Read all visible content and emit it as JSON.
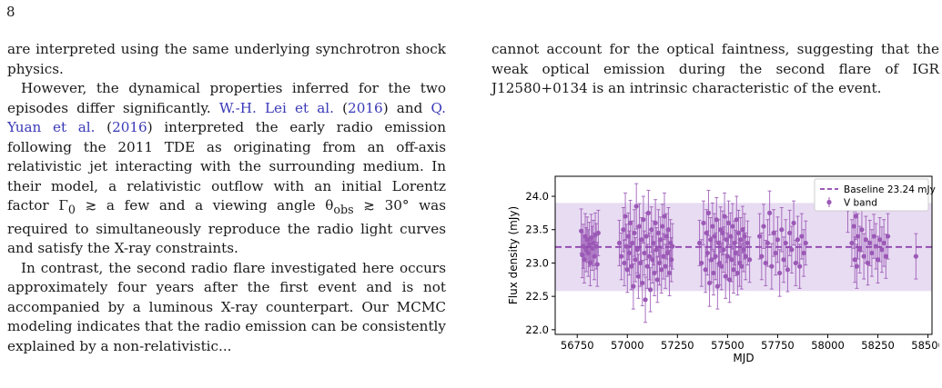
{
  "page": {
    "number": "8"
  },
  "left_column": {
    "p1": "are interpreted using the same underlying synchrotron shock physics.",
    "p2": {
      "t1": "However, the dynamical properties inferred for the two episodes differ significantly. ",
      "cite1_author": "W.-H. Lei et al.",
      "cite1_year": "2016",
      "t2": " and ",
      "cite2_author": "Q. Yuan et al.",
      "cite2_year": "2016",
      "t3": " interpreted the early radio emission following the 2011 TDE as originating from an off-axis relativistic jet interacting with the surrounding medium. In their model, a relativistic outflow with an initial Lorentz factor Γ",
      "t3_sub": "0",
      "t4": " ≳ a few and a viewing angle θ",
      "t4_sub": "obs",
      "t5": " ≳ 30° was required to simultaneously reproduce the radio light curves and satisfy the X-ray constraints."
    },
    "p3": "In contrast, the second radio flare investigated here occurs approximately four years after the first event and is not accompanied by a luminous X-ray counterpart. Our MCMC modeling indicates that the radio emission can be consistently explained by a non-relativistic..."
  },
  "right_column": {
    "p1": "cannot account for the optical faintness, suggesting that the weak optical emission during the second flare of IGR J12580+0134 is an intrinsic characteristic of the event."
  },
  "chart_data": {
    "type": "scatter",
    "xlabel": "MJD",
    "ylabel": "Flux density (mJy)",
    "xlim": [
      56640,
      58520
    ],
    "ylim": [
      21.93,
      24.3
    ],
    "xticks": [
      56750,
      57000,
      57250,
      57500,
      57750,
      58000,
      58250,
      58500
    ],
    "yticks": [
      22.0,
      22.5,
      23.0,
      23.5,
      24.0
    ],
    "grid": false,
    "legend": {
      "placement": "top-right",
      "baseline_label": "Baseline 23.24 mJy",
      "band_label": "V band"
    },
    "baseline": 23.24,
    "band": [
      22.58,
      23.9
    ],
    "colors": {
      "points": "#9b59b6",
      "baseline": "#8e44ad",
      "band_fill": "#e8dcf2"
    },
    "series": [
      {
        "name": "V band",
        "points": [
          [
            56770,
            23.48,
            0.33
          ],
          [
            56775,
            23.12,
            0.34
          ],
          [
            56780,
            23.25,
            0.33
          ],
          [
            56785,
            23.05,
            0.35
          ],
          [
            56790,
            23.4,
            0.34
          ],
          [
            56795,
            23.2,
            0.33
          ],
          [
            56800,
            23.35,
            0.34
          ],
          [
            56805,
            23.15,
            0.35
          ],
          [
            56810,
            23.28,
            0.33
          ],
          [
            56815,
            23.0,
            0.34
          ],
          [
            56820,
            23.38,
            0.35
          ],
          [
            56825,
            23.22,
            0.33
          ],
          [
            56830,
            23.3,
            0.34
          ],
          [
            56835,
            23.1,
            0.35
          ],
          [
            56840,
            23.42,
            0.33
          ],
          [
            56845,
            23.25,
            0.34
          ],
          [
            56850,
            22.98,
            0.33
          ],
          [
            56855,
            23.45,
            0.34
          ],
          [
            56960,
            23.3,
            0.34
          ],
          [
            56970,
            23.1,
            0.35
          ],
          [
            56980,
            23.5,
            0.33
          ],
          [
            56985,
            23.0,
            0.34
          ],
          [
            56990,
            23.7,
            0.35
          ],
          [
            56995,
            23.25,
            0.33
          ],
          [
            57000,
            22.9,
            0.34
          ],
          [
            57005,
            23.4,
            0.35
          ],
          [
            57010,
            23.15,
            0.33
          ],
          [
            57015,
            23.6,
            0.34
          ],
          [
            57020,
            22.95,
            0.35
          ],
          [
            57025,
            23.3,
            0.33
          ],
          [
            57030,
            22.65,
            0.34
          ],
          [
            57035,
            23.45,
            0.35
          ],
          [
            57040,
            23.05,
            0.33
          ],
          [
            57045,
            23.85,
            0.34
          ],
          [
            57050,
            23.2,
            0.35
          ],
          [
            57055,
            22.8,
            0.33
          ],
          [
            57060,
            23.55,
            0.34
          ],
          [
            57065,
            23.0,
            0.35
          ],
          [
            57070,
            23.35,
            0.33
          ],
          [
            57075,
            22.7,
            0.34
          ],
          [
            57080,
            23.65,
            0.35
          ],
          [
            57085,
            23.15,
            0.33
          ],
          [
            57090,
            22.45,
            0.34
          ],
          [
            57095,
            23.4,
            0.35
          ],
          [
            57100,
            22.95,
            0.33
          ],
          [
            57105,
            23.75,
            0.34
          ],
          [
            57110,
            23.1,
            0.35
          ],
          [
            57115,
            22.6,
            0.33
          ],
          [
            57120,
            23.5,
            0.34
          ],
          [
            57125,
            23.05,
            0.35
          ],
          [
            57130,
            23.3,
            0.33
          ],
          [
            57135,
            22.85,
            0.34
          ],
          [
            57140,
            23.6,
            0.35
          ],
          [
            57145,
            23.2,
            0.33
          ],
          [
            57150,
            22.75,
            0.34
          ],
          [
            57155,
            23.45,
            0.35
          ],
          [
            57160,
            23.0,
            0.33
          ],
          [
            57165,
            23.35,
            0.34
          ],
          [
            57170,
            22.9,
            0.35
          ],
          [
            57175,
            23.55,
            0.33
          ],
          [
            57180,
            23.1,
            0.34
          ],
          [
            57185,
            23.7,
            0.35
          ],
          [
            57190,
            22.95,
            0.33
          ],
          [
            57195,
            23.4,
            0.34
          ],
          [
            57200,
            23.15,
            0.35
          ],
          [
            57205,
            23.5,
            0.33
          ],
          [
            57210,
            22.85,
            0.34
          ],
          [
            57215,
            23.3,
            0.35
          ],
          [
            57220,
            23.05,
            0.33
          ],
          [
            57225,
            23.25,
            0.34
          ],
          [
            57360,
            23.3,
            0.34
          ],
          [
            57370,
            23.0,
            0.35
          ],
          [
            57380,
            23.6,
            0.33
          ],
          [
            57390,
            22.9,
            0.34
          ],
          [
            57395,
            23.45,
            0.35
          ],
          [
            57400,
            23.15,
            0.33
          ],
          [
            57405,
            23.75,
            0.34
          ],
          [
            57410,
            22.7,
            0.35
          ],
          [
            57415,
            23.35,
            0.33
          ],
          [
            57420,
            23.05,
            0.34
          ],
          [
            57425,
            23.55,
            0.35
          ],
          [
            57430,
            22.85,
            0.33
          ],
          [
            57435,
            23.4,
            0.34
          ],
          [
            57440,
            23.1,
            0.35
          ],
          [
            57445,
            23.65,
            0.33
          ],
          [
            57450,
            22.65,
            0.34
          ],
          [
            57455,
            23.3,
            0.35
          ],
          [
            57460,
            23.0,
            0.33
          ],
          [
            57465,
            23.5,
            0.34
          ],
          [
            57470,
            22.95,
            0.35
          ],
          [
            57475,
            23.45,
            0.33
          ],
          [
            57480,
            23.2,
            0.34
          ],
          [
            57485,
            23.7,
            0.35
          ],
          [
            57490,
            22.8,
            0.33
          ],
          [
            57495,
            23.35,
            0.34
          ],
          [
            57500,
            23.1,
            0.35
          ],
          [
            57505,
            23.6,
            0.33
          ],
          [
            57510,
            22.75,
            0.34
          ],
          [
            57515,
            23.4,
            0.35
          ],
          [
            57520,
            23.05,
            0.33
          ],
          [
            57525,
            23.55,
            0.34
          ],
          [
            57530,
            22.9,
            0.35
          ],
          [
            57535,
            23.3,
            0.33
          ],
          [
            57540,
            23.15,
            0.34
          ],
          [
            57545,
            23.65,
            0.35
          ],
          [
            57550,
            22.85,
            0.33
          ],
          [
            57555,
            23.45,
            0.34
          ],
          [
            57560,
            23.0,
            0.35
          ],
          [
            57565,
            23.35,
            0.33
          ],
          [
            57570,
            22.95,
            0.34
          ],
          [
            57575,
            23.5,
            0.35
          ],
          [
            57580,
            23.2,
            0.33
          ],
          [
            57585,
            23.4,
            0.34
          ],
          [
            57590,
            23.1,
            0.35
          ],
          [
            57600,
            23.3,
            0.33
          ],
          [
            57610,
            23.05,
            0.34
          ],
          [
            57660,
            23.4,
            0.34
          ],
          [
            57670,
            23.1,
            0.35
          ],
          [
            57680,
            23.55,
            0.33
          ],
          [
            57690,
            23.0,
            0.34
          ],
          [
            57700,
            23.3,
            0.35
          ],
          [
            57710,
            23.75,
            0.33
          ],
          [
            57720,
            22.95,
            0.34
          ],
          [
            57730,
            23.45,
            0.35
          ],
          [
            57740,
            23.15,
            0.33
          ],
          [
            57750,
            23.35,
            0.34
          ],
          [
            57760,
            22.85,
            0.35
          ],
          [
            57770,
            23.5,
            0.33
          ],
          [
            57780,
            23.05,
            0.34
          ],
          [
            57790,
            23.3,
            0.35
          ],
          [
            57800,
            22.9,
            0.33
          ],
          [
            57810,
            23.45,
            0.34
          ],
          [
            57820,
            23.2,
            0.35
          ],
          [
            57830,
            23.6,
            0.33
          ],
          [
            57840,
            23.0,
            0.34
          ],
          [
            57850,
            23.35,
            0.35
          ],
          [
            57860,
            22.95,
            0.33
          ],
          [
            57870,
            23.4,
            0.34
          ],
          [
            57880,
            23.15,
            0.35
          ],
          [
            57890,
            23.3,
            0.33
          ],
          [
            58100,
            23.8,
            0.34
          ],
          [
            58120,
            23.3,
            0.35
          ],
          [
            58130,
            23.55,
            0.33
          ],
          [
            58135,
            23.05,
            0.34
          ],
          [
            58140,
            23.7,
            0.35
          ],
          [
            58145,
            22.95,
            0.33
          ],
          [
            58150,
            23.4,
            0.34
          ],
          [
            58160,
            23.2,
            0.35
          ],
          [
            58170,
            23.5,
            0.33
          ],
          [
            58180,
            23.1,
            0.34
          ],
          [
            58190,
            23.35,
            0.35
          ],
          [
            58200,
            23.0,
            0.33
          ],
          [
            58210,
            23.3,
            0.34
          ],
          [
            58220,
            23.15,
            0.35
          ],
          [
            58230,
            23.4,
            0.33
          ],
          [
            58240,
            23.25,
            0.34
          ],
          [
            58250,
            23.05,
            0.35
          ],
          [
            58260,
            23.35,
            0.33
          ],
          [
            58270,
            23.2,
            0.34
          ],
          [
            58280,
            23.3,
            0.35
          ],
          [
            58290,
            23.1,
            0.33
          ],
          [
            58300,
            23.4,
            0.34
          ],
          [
            58440,
            23.1,
            0.34
          ]
        ]
      }
    ]
  }
}
